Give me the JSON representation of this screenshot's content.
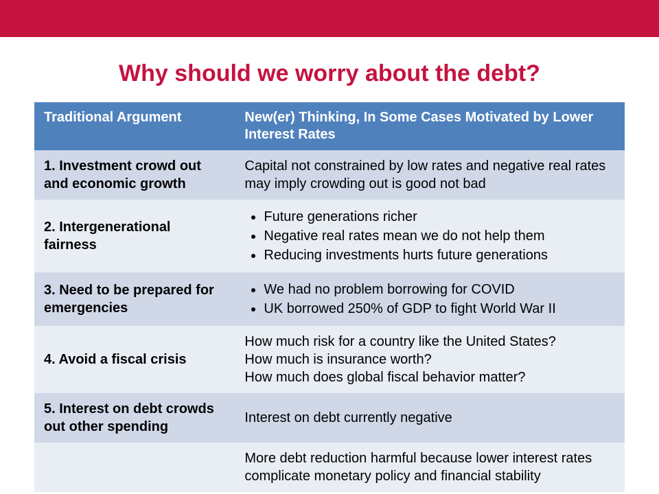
{
  "colors": {
    "top_band": "#c4133f",
    "title": "#c4133f",
    "header_bg": "#4f81bd",
    "header_text": "#ffffff",
    "row_alt_a": "#d0d8e8",
    "row_alt_b": "#e9edf4",
    "body_text": "#000000"
  },
  "typography": {
    "title_fontsize": 34,
    "cell_fontsize": 20,
    "header_fontsize": 20
  },
  "title": "Why should we worry about the debt?",
  "table": {
    "headers": {
      "left": "Traditional Argument",
      "right": "New(er) Thinking, In Some Cases Motivated by Lower Interest Rates"
    },
    "rows": [
      {
        "left": "1. Investment crowd out and economic growth",
        "right_type": "text",
        "right_text": "Capital not constrained by low rates and negative real rates may imply crowding out is good not bad"
      },
      {
        "left": "2. Intergenerational fairness",
        "right_type": "bullets",
        "right_bullets": [
          "Future generations richer",
          "Negative real rates mean we do not help them",
          "Reducing investments hurts future generations"
        ]
      },
      {
        "left": "3. Need to be prepared for emergencies",
        "right_type": "bullets",
        "right_bullets": [
          "We had no problem borrowing for COVID",
          "UK borrowed 250% of GDP to fight World War II"
        ]
      },
      {
        "left": "4. Avoid a fiscal crisis",
        "right_type": "lines",
        "right_lines": [
          "How much risk for a country like the United States?",
          "How much is insurance worth?",
          "How much does global fiscal behavior matter?"
        ]
      },
      {
        "left": "5. Interest on debt crowds out other spending",
        "right_type": "text",
        "right_text": "Interest on debt currently negative"
      },
      {
        "left": "",
        "right_type": "text",
        "right_text": "More debt reduction harmful because lower interest rates complicate monetary policy and financial stability"
      }
    ]
  }
}
